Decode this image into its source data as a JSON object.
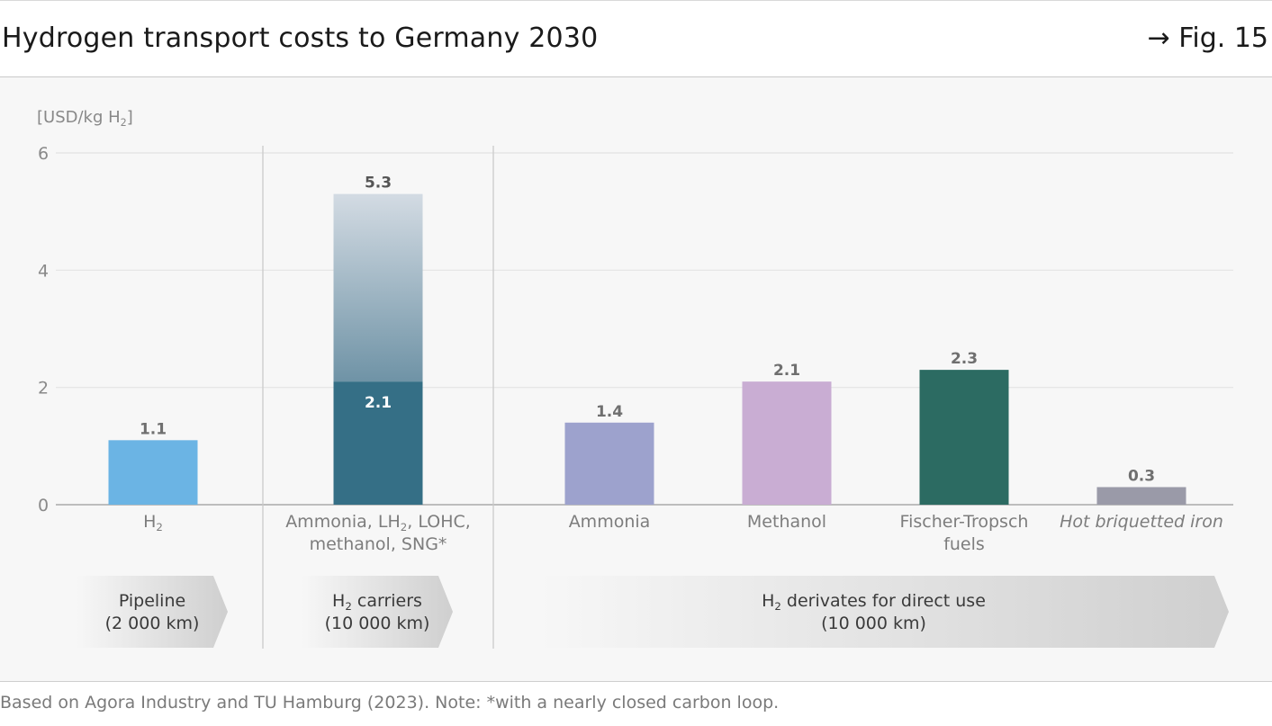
{
  "header": {
    "title": "Hydrogen transport costs to Germany 2030",
    "figure_ref": "→ Fig. 15"
  },
  "footer": {
    "note": "Based on Agora Industry and TU Hamburg (2023). Note: *with a nearly closed carbon loop."
  },
  "chart_data": {
    "type": "bar",
    "ylabel": "[USD/kg H2]",
    "ylim": [
      0,
      6
    ],
    "yticks": [
      0,
      2,
      4,
      6
    ],
    "grid": true,
    "bars": [
      {
        "label_lines": [
          "H2"
        ],
        "value": 1.1,
        "value_label": "1.1",
        "color": "#6bb4e4"
      },
      {
        "label_lines": [
          "Ammonia, LH2, LOHC,",
          "methanol, SNG*"
        ],
        "value": 2.1,
        "value_label": "2.1",
        "upper_value": 5.3,
        "upper_label": "5.3",
        "color": "#356f86",
        "range_color": "#c9d4de"
      },
      {
        "label_lines": [
          "Ammonia"
        ],
        "value": 1.4,
        "value_label": "1.4",
        "color": "#9da2cd"
      },
      {
        "label_lines": [
          "Methanol"
        ],
        "value": 2.1,
        "value_label": "2.1",
        "color": "#c9add3"
      },
      {
        "label_lines": [
          "Fischer-Tropsch",
          "fuels"
        ],
        "value": 2.3,
        "value_label": "2.3",
        "color": "#2c6b62"
      },
      {
        "label_lines": [
          "Hot briquetted iron"
        ],
        "value": 0.3,
        "value_label": "0.3",
        "color": "#9a9aa8",
        "italic": true
      }
    ],
    "groups": [
      {
        "name_lines": [
          "Pipeline",
          "(2 000 km)"
        ]
      },
      {
        "name_lines": [
          "H2 carriers",
          "(10 000 km)"
        ]
      },
      {
        "name_lines": [
          "H2 derivates for direct use",
          "(10 000 km)"
        ]
      }
    ]
  }
}
